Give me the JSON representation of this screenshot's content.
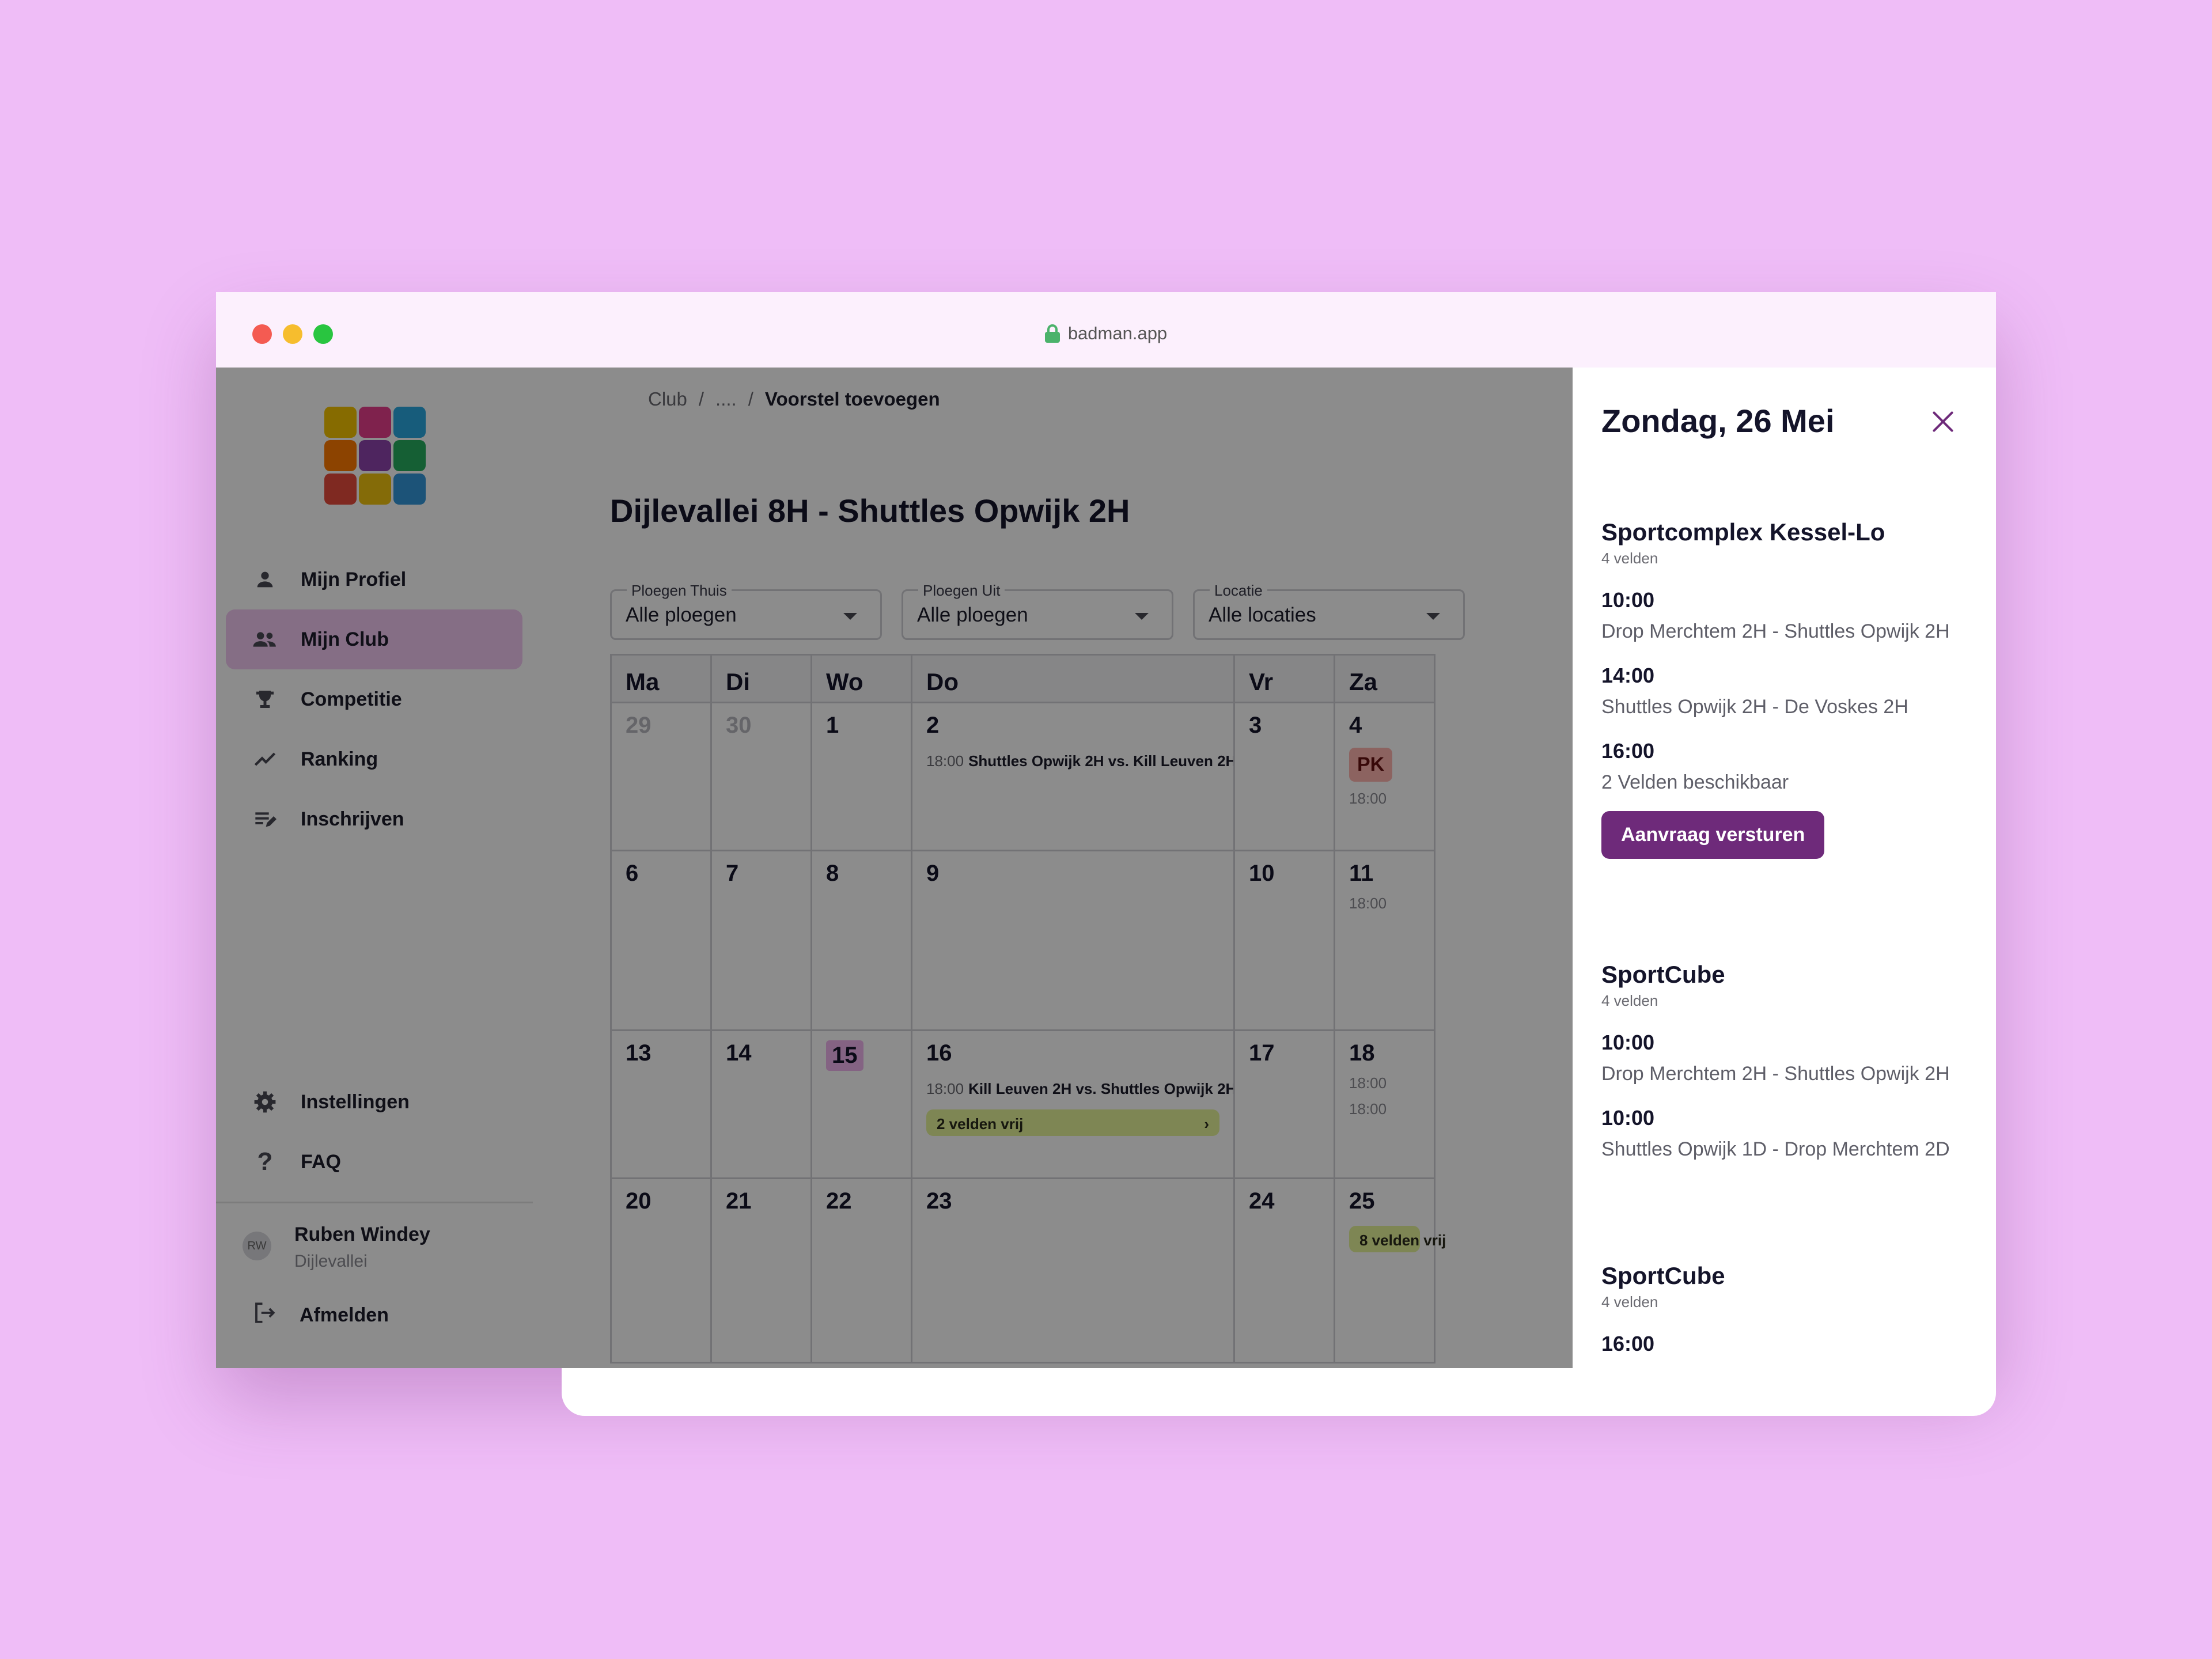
{
  "browser": {
    "url": "badman.app"
  },
  "sidebar": {
    "nav": [
      {
        "label": "Mijn Profiel",
        "icon": "person-icon",
        "active": false
      },
      {
        "label": "Mijn Club",
        "icon": "group-icon",
        "active": true
      },
      {
        "label": "Competitie",
        "icon": "trophy-icon",
        "active": false
      },
      {
        "label": "Ranking",
        "icon": "trend-icon",
        "active": false
      },
      {
        "label": "Inschrijven",
        "icon": "edit-list-icon",
        "active": false
      }
    ],
    "bottom_nav": [
      {
        "label": "Instellingen",
        "icon": "gear-icon"
      },
      {
        "label": "FAQ",
        "icon": "question-icon"
      }
    ],
    "user": {
      "initials": "RW",
      "name": "Ruben Windey",
      "club": "Dijlevallei"
    },
    "logout": "Afmelden"
  },
  "breadcrumb": {
    "root": "Club",
    "sep": "/",
    "middle": "....",
    "current": "Voorstel toevoegen"
  },
  "page": {
    "title": "Dijlevallei 8H - Shuttles Opwijk 2H"
  },
  "filters": [
    {
      "label": "Ploegen Thuis",
      "value": "Alle ploegen"
    },
    {
      "label": "Ploegen Uit",
      "value": "Alle ploegen"
    },
    {
      "label": "Locatie",
      "value": "Alle locaties"
    }
  ],
  "calendar": {
    "days": [
      "Ma",
      "Di",
      "Wo",
      "Do",
      "Vr",
      "Za"
    ],
    "rows": [
      [
        "29",
        "30",
        "1",
        "2",
        "3",
        "4"
      ],
      [
        "6",
        "7",
        "8",
        "9",
        "10",
        "11"
      ],
      [
        "13",
        "14",
        "15",
        "16",
        "17",
        "18"
      ],
      [
        "20",
        "21",
        "22",
        "23",
        "24",
        "25"
      ]
    ],
    "events": {
      "do_2": {
        "time": "18:00",
        "match": "Shuttles Opwijk 2H vs. Kill Leuven 2H"
      },
      "do_16": {
        "time": "18:00",
        "match": "Kill Leuven 2H vs. Shuttles Opwijk 2H"
      },
      "do_16_pill": "2 velden vrij",
      "pill_arrow": "›",
      "za_4_badge": "PK",
      "za_time": "18:00",
      "za_25_pill": "8 velden vrij"
    }
  },
  "panel": {
    "title": "Zondag, 26 Mei",
    "venues": [
      {
        "name": "Sportcomplex Kessel-Lo",
        "courts": "4 velden",
        "slots": [
          {
            "time": "10:00",
            "desc": "Drop Merchtem 2H - Shuttles Opwijk 2H"
          },
          {
            "time": "14:00",
            "desc": "Shuttles Opwijk 2H - De Voskes 2H"
          },
          {
            "time": "16:00",
            "desc": "2 Velden beschikbaar"
          }
        ],
        "action": "Aanvraag versturen"
      },
      {
        "name": "SportCube",
        "courts": "4 velden",
        "slots": [
          {
            "time": "10:00",
            "desc": "Drop Merchtem 2H - Shuttles Opwijk 2H"
          },
          {
            "time": "10:00",
            "desc": "Shuttles Opwijk 1D - Drop Merchtem 2D"
          }
        ]
      },
      {
        "name": "SportCube",
        "courts": "4 velden",
        "slots": [
          {
            "time": "16:00",
            "desc": ""
          }
        ]
      }
    ]
  },
  "colors": {
    "background": "#efbdf7",
    "accent": "#6e2a7a",
    "active_nav": "#f3c8f3",
    "free_courts": "#e5f59a",
    "today": "#f0b4ef",
    "pk_badge": "#ffb5b0"
  }
}
